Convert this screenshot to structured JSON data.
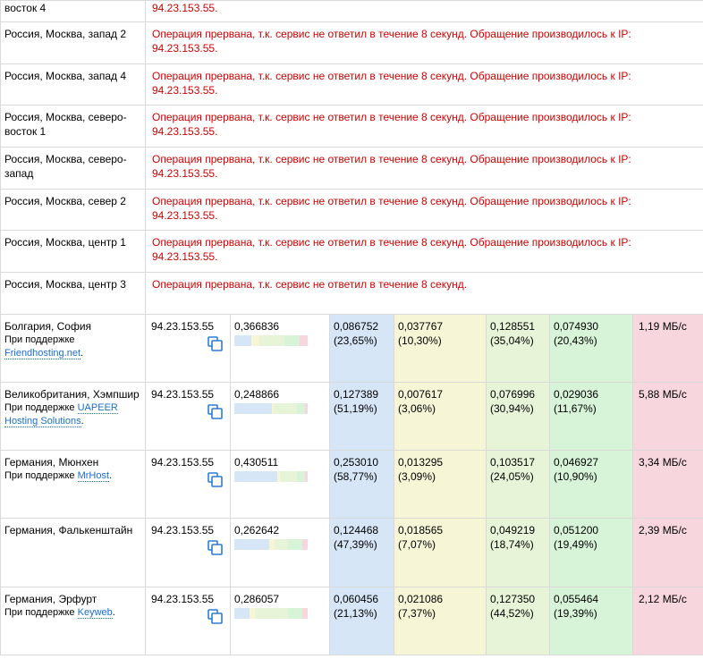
{
  "error_rows": [
    {
      "location": "восток 4",
      "message": "94.23.153.55."
    },
    {
      "location": "Россия, Москва, запад 2",
      "message": "Операция прервана, т.к. сервис не ответил в течение 8 секунд. Обращение производилось к IP: 94.23.153.55."
    },
    {
      "location": "Россия, Москва, запад 4",
      "message": "Операция прервана, т.к. сервис не ответил в течение 8 секунд. Обращение производилось к IP: 94.23.153.55."
    },
    {
      "location": "Россия, Москва, северо-восток 1",
      "message": "Операция прервана, т.к. сервис не ответил в течение 8 секунд. Обращение производилось к IP: 94.23.153.55."
    },
    {
      "location": "Россия, Москва, северо-запад",
      "message": "Операция прервана, т.к. сервис не ответил в течение 8 секунд. Обращение производилось к IP: 94.23.153.55."
    },
    {
      "location": "Россия, Москва, север 2",
      "message": "Операция прервана, т.к. сервис не ответил в течение 8 секунд. Обращение производилось к IP: 94.23.153.55."
    },
    {
      "location": "Россия, Москва, центр 1",
      "message": "Операция прервана, т.к. сервис не ответил в течение 8 секунд. Обращение производилось к IP: 94.23.153.55."
    },
    {
      "location": "Россия, Москва, центр 3",
      "message": "Операция прервана, т.к. сервис не ответил в течение 8 секунд."
    }
  ],
  "colors": {
    "dns": "#d6e6f7",
    "connect": "#f6f5d5",
    "wait": "#e8f4d8",
    "receive": "#d8f4d8",
    "speed": "#f7d7dd"
  },
  "result_rows": [
    {
      "location": "Болгария, София",
      "sponsor_prefix": "При поддержке",
      "sponsor": "Friendhosting.net",
      "sponsor_suffix": ".",
      "ip": "94.23.153.55",
      "total": "0,366836",
      "dns": "0,086752",
      "dns_pct": "(23,65%)",
      "connect": "0,037767",
      "connect_pct": "(10,30%)",
      "wait": "0,128551",
      "wait_pct": "(35,04%)",
      "receive": "0,074930",
      "receive_pct": "(20,43%)",
      "speed": "1,19 МБ/с",
      "bar": [
        23.65,
        10.3,
        35.04,
        20.43,
        10.58
      ]
    },
    {
      "location": "Великобритания, Хэмпшир",
      "sponsor_prefix": "При поддержке",
      "sponsor": "UAPEER Hosting Solutions",
      "sponsor_suffix": ".",
      "ip": "94.23.153.55",
      "total": "0,248866",
      "dns": "0,127389",
      "dns_pct": "(51,19%)",
      "connect": "0,007617",
      "connect_pct": "(3,06%)",
      "wait": "0,076996",
      "wait_pct": "(30,94%)",
      "receive": "0,029036",
      "receive_pct": "(11,67%)",
      "speed": "5,88 МБ/с",
      "bar": [
        51.19,
        3.06,
        30.94,
        11.67,
        3.14
      ]
    },
    {
      "location": "Германия, Мюнхен",
      "sponsor_prefix": "При поддержке",
      "sponsor": "MrHost",
      "sponsor_suffix": ".",
      "ip": "94.23.153.55",
      "total": "0,430511",
      "dns": "0,253010",
      "dns_pct": "(58,77%)",
      "connect": "0,013295",
      "connect_pct": "(3,09%)",
      "wait": "0,103517",
      "wait_pct": "(24,05%)",
      "receive": "0,046927",
      "receive_pct": "(10,90%)",
      "speed": "3,34 МБ/с",
      "bar": [
        58.77,
        3.09,
        24.05,
        10.9,
        3.19
      ]
    },
    {
      "location": "Германия, Фалькенштайн",
      "sponsor_prefix": "",
      "sponsor": "",
      "sponsor_suffix": "",
      "ip": "94.23.153.55",
      "total": "0,262642",
      "dns": "0,124468",
      "dns_pct": "(47,39%)",
      "connect": "0,018565",
      "connect_pct": "(7,07%)",
      "wait": "0,049219",
      "wait_pct": "(18,74%)",
      "receive": "0,051200",
      "receive_pct": "(19,49%)",
      "speed": "2,39 МБ/с",
      "bar": [
        47.39,
        7.07,
        18.74,
        19.49,
        7.31
      ]
    },
    {
      "location": "Германия, Эрфурт",
      "sponsor_prefix": "При поддержке",
      "sponsor": "Keyweb",
      "sponsor_suffix": ".",
      "ip": "94.23.153.55",
      "total": "0,286057",
      "dns": "0,060456",
      "dns_pct": "(21,13%)",
      "connect": "0,021086",
      "connect_pct": "(7,37%)",
      "wait": "0,127350",
      "wait_pct": "(44,52%)",
      "receive": "0,055464",
      "receive_pct": "(19,39%)",
      "speed": "2,12 МБ/с",
      "bar": [
        21.13,
        7.37,
        44.52,
        19.39,
        7.59
      ]
    }
  ]
}
